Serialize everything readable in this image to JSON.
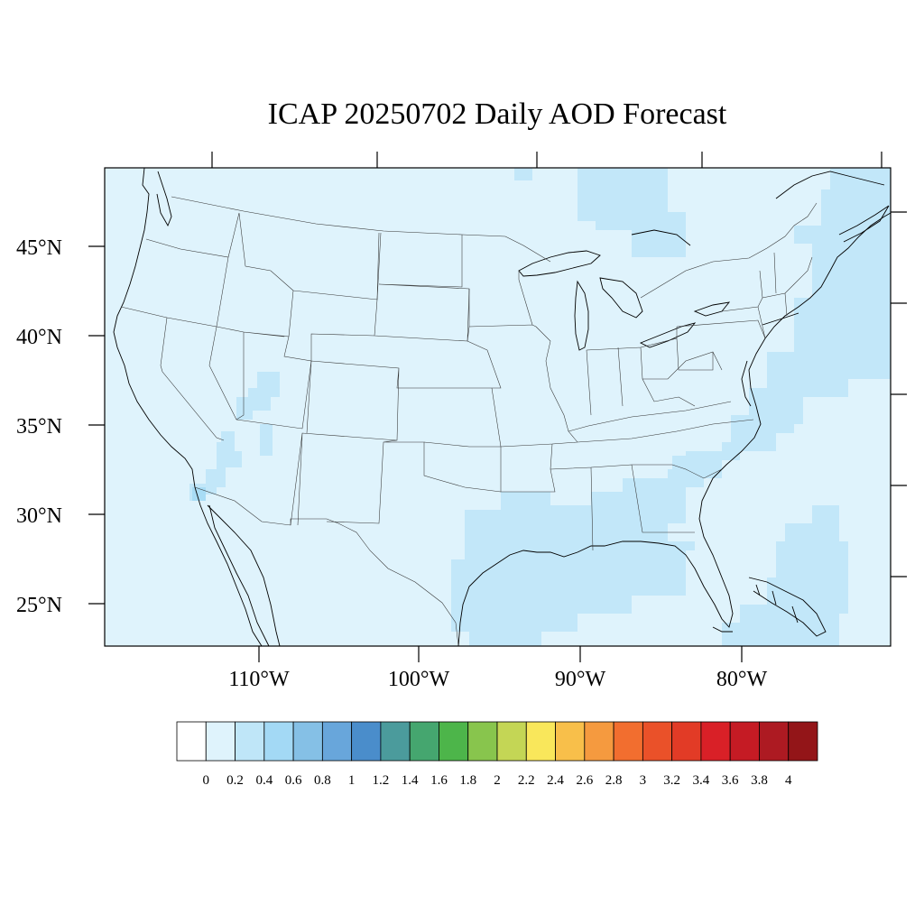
{
  "title": "ICAP 20250702 Daily AOD Forecast",
  "background_fill": "#dff3fc",
  "plume_fill": "#c2e7f9",
  "plume_fill_strong": "#a8dcf5",
  "lat_labels": [
    "45°N",
    "40°N",
    "35°N",
    "30°N",
    "25°N"
  ],
  "lon_labels": [
    "110°W",
    "100°W",
    "90°W",
    "80°W"
  ],
  "colorbar": {
    "colors": [
      "#ffffff",
      "#dff3fc",
      "#bfe6f8",
      "#a3d9f5",
      "#85c0e6",
      "#68a6db",
      "#4a8dcb",
      "#4b9b9c",
      "#45a66f",
      "#4db54a",
      "#88c54d",
      "#c4d655",
      "#f9e75b",
      "#f8bf4a",
      "#f59a3f",
      "#f26e2f",
      "#ea5129",
      "#e23b26",
      "#d92027",
      "#c51b24",
      "#ad1a22",
      "#931518"
    ],
    "labels": [
      "0",
      "0.2",
      "0.4",
      "0.6",
      "0.8",
      "1",
      "1.2",
      "1.4",
      "1.6",
      "1.8",
      "2",
      "2.2",
      "2.4",
      "2.6",
      "2.8",
      "3",
      "3.2",
      "3.4",
      "3.6",
      "3.8",
      "4"
    ]
  }
}
